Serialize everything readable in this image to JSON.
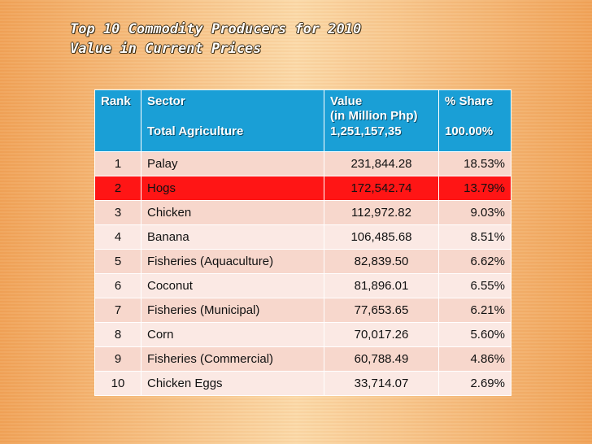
{
  "title": {
    "line1": "Top 10 Commodity Producers for 2010",
    "line2": "Value in Current Prices"
  },
  "table": {
    "headers": {
      "rank": "Rank",
      "sector": "Sector",
      "sector_sub": "Total Agriculture",
      "value": "Value",
      "value_unit": "(in Million Php)",
      "value_total": "1,251,157,35",
      "share": "% Share",
      "share_total": "100.00%"
    },
    "rows": [
      {
        "rank": "1",
        "sector": "Palay",
        "value": "231,844.28",
        "share": "18.53%"
      },
      {
        "rank": "2",
        "sector": "Hogs",
        "value": "172,542.74",
        "share": "13.79%"
      },
      {
        "rank": "3",
        "sector": "Chicken",
        "value": "112,972.82",
        "share": "9.03%"
      },
      {
        "rank": "4",
        "sector": "Banana",
        "value": "106,485.68",
        "share": "8.51%"
      },
      {
        "rank": "5",
        "sector": "Fisheries (Aquaculture)",
        "value": "82,839.50",
        "share": "6.62%"
      },
      {
        "rank": "6",
        "sector": "Coconut",
        "value": "81,896.01",
        "share": "6.55%"
      },
      {
        "rank": "7",
        "sector": "Fisheries (Municipal)",
        "value": "77,653.65",
        "share": "6.21%"
      },
      {
        "rank": "8",
        "sector": "Corn",
        "value": "70,017.26",
        "share": "5.60%"
      },
      {
        "rank": "9",
        "sector": "Fisheries (Commercial)",
        "value": "60,788.49",
        "share": "4.86%"
      },
      {
        "rank": "10",
        "sector": "Chicken Eggs",
        "value": "33,714.07",
        "share": "2.69%"
      }
    ],
    "highlight_row_rank": "2",
    "colors": {
      "header_bg": "#1a9fd6",
      "highlight_bg": "#ff1515",
      "row_odd_bg": "#f7d7cc",
      "row_even_bg": "#fbe9e4"
    }
  }
}
